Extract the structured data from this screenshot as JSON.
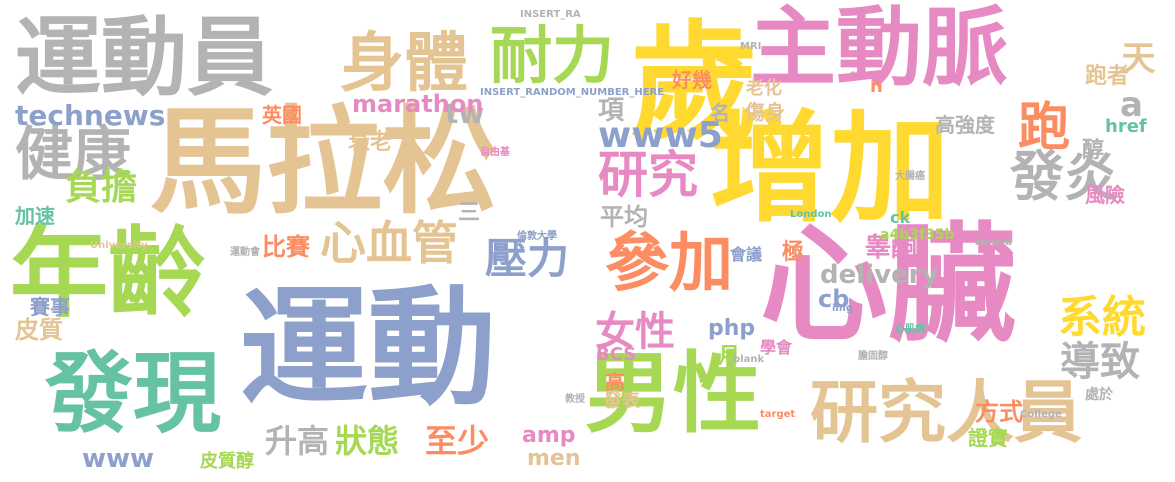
{
  "palette": {
    "green": "#66c2a5",
    "orange": "#fc8d62",
    "blue": "#8da0cb",
    "pink": "#e78ac3",
    "lime": "#a6d854",
    "yellow": "#ffd92f",
    "tan": "#e5c494",
    "gray": "#b3b3b3"
  },
  "words": [
    "馬拉松",
    "運動",
    "心臟",
    "增加",
    "年齡",
    "主動脈",
    "歲",
    "運動員",
    "發現",
    "男性",
    "研究人員",
    "身體",
    "耐力",
    "參加",
    "健康",
    "發炎",
    "跑",
    "心血管",
    "女性",
    "系統",
    "研究",
    "壓力",
    "www5",
    "負擔",
    "導致",
    "狀態",
    "至少",
    "升高",
    "天",
    "technews",
    "a",
    "tw",
    "比賽",
    "平均",
    "delivery",
    "皮質",
    "方式",
    "www",
    "marathon",
    "項",
    "英國",
    "衰老",
    "高強度",
    "睾酮",
    "風險",
    "老化",
    "好幾",
    "傷身",
    "名",
    "跑者",
    "href",
    "醇",
    "php",
    "cb",
    "amp",
    "men",
    "BCS",
    "加速",
    "賽事",
    "學會",
    "會議",
    "月",
    "極",
    "證實",
    "高",
    "皮質醇",
    "處於",
    "ck",
    "a4b3f35b",
    "London",
    "University",
    "發表",
    "三",
    "n",
    "img",
    "target",
    "College",
    "src",
    "MRI",
    "INSERT_RANDOM_NUMBER_HERE",
    "INSERT_RA",
    "_blank",
    "zoneid",
    "倫敦大學",
    "自由基",
    "運動會",
    "心肌病",
    "大腸癌",
    "膽固醇",
    "教授"
  ]
}
